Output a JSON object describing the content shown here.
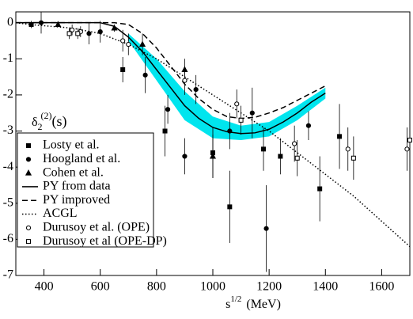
{
  "chart_data": {
    "type": "scatter",
    "xlabel": {
      "base": "s",
      "sup": "1/2",
      "unit": "(MeV)"
    },
    "ylabel": {
      "base": "δ",
      "sub": "2",
      "sup": "(2)",
      "arg": "(s)"
    },
    "xlim": [
      300,
      1700
    ],
    "ylim": [
      -7,
      0.3
    ],
    "xticks": [
      400,
      600,
      800,
      1000,
      1200,
      1400,
      1600
    ],
    "yticks": [
      0,
      -1,
      -2,
      -3,
      -4,
      -5,
      -6,
      -7
    ],
    "band": {
      "color": "#00e5ee",
      "x": [
        700,
        800,
        900,
        1000,
        1100,
        1200,
        1300,
        1400
      ],
      "upper": [
        -0.3,
        -1.0,
        -1.9,
        -2.6,
        -2.85,
        -2.75,
        -2.3,
        -1.8
      ],
      "lower": [
        -0.5,
        -1.6,
        -2.7,
        -3.2,
        -3.25,
        -3.15,
        -2.7,
        -2.1
      ]
    },
    "series": [
      {
        "name": "Losty et al.",
        "kind": "points",
        "marker": "square-filled",
        "x": [
          355,
          680,
          830,
          1000,
          1060,
          1180,
          1240,
          1380,
          1450
        ],
        "values": [
          -0.05,
          -1.3,
          -3.0,
          -3.6,
          -5.1,
          -3.5,
          -3.7,
          -4.6,
          -3.15
        ],
        "errors": [
          0.1,
          0.35,
          0.7,
          0.7,
          1.0,
          0.6,
          0.5,
          0.9,
          0.9
        ]
      },
      {
        "name": "Hoogland et al.",
        "kind": "points",
        "marker": "circle-filled",
        "x": [
          390,
          560,
          600,
          760,
          840,
          900,
          940,
          1060,
          1140,
          1190,
          1340
        ],
        "values": [
          0.0,
          -0.3,
          -0.25,
          -1.45,
          -2.4,
          -3.7,
          -1.85,
          -3.0,
          -2.5,
          -5.7,
          -2.85
        ],
        "errors": [
          0.3,
          0.3,
          0.3,
          0.5,
          0.4,
          0.5,
          0.4,
          0.5,
          0.7,
          1.2,
          0.4
        ]
      },
      {
        "name": "Cohen et al.",
        "kind": "points",
        "marker": "triangle-filled",
        "x": [
          450,
          650,
          750,
          900,
          1000
        ],
        "values": [
          -0.05,
          -0.15,
          -0.6,
          -1.3,
          -3.7
        ],
        "errors": [
          0.05,
          0.1,
          0.3,
          0.3,
          0.6
        ]
      },
      {
        "name": "PY from data",
        "kind": "line",
        "dash": "none",
        "x": [
          300,
          600,
          650,
          700,
          750,
          800,
          850,
          900,
          950,
          1000,
          1050,
          1100,
          1150,
          1200,
          1250,
          1300,
          1350,
          1400
        ],
        "values": [
          0,
          0,
          -0.1,
          -0.4,
          -0.8,
          -1.3,
          -1.8,
          -2.3,
          -2.65,
          -2.9,
          -3.02,
          -3.07,
          -3.05,
          -2.95,
          -2.75,
          -2.5,
          -2.2,
          -1.95
        ]
      },
      {
        "name": "PY improved",
        "kind": "line",
        "dash": "7,4",
        "x": [
          300,
          650,
          700,
          750,
          800,
          850,
          900,
          950,
          1000,
          1050,
          1100,
          1150,
          1200,
          1250,
          1300,
          1350,
          1400
        ],
        "values": [
          0,
          0,
          -0.05,
          -0.3,
          -0.7,
          -1.2,
          -1.7,
          -2.1,
          -2.4,
          -2.6,
          -2.65,
          -2.62,
          -2.5,
          -2.35,
          -2.15,
          -1.95,
          -1.75
        ]
      },
      {
        "name": "ACGL",
        "kind": "line",
        "dash": "1.5,2.5",
        "x": [
          300,
          350,
          500,
          600,
          700,
          800,
          900,
          1000,
          1100,
          1200,
          1300,
          1400,
          1500,
          1600,
          1700
        ],
        "values": [
          0,
          -0.05,
          -0.15,
          -0.3,
          -0.6,
          -1.0,
          -1.5,
          -2.0,
          -2.5,
          -3.0,
          -3.6,
          -4.2,
          -4.8,
          -5.5,
          -6.2
        ]
      },
      {
        "name": "Durusoy et al. (OPE)",
        "kind": "points",
        "marker": "circle-open",
        "x": [
          500,
          530,
          680,
          700,
          900,
          1085,
          1290,
          1480,
          1690
        ],
        "values": [
          -0.2,
          -0.25,
          -0.5,
          -0.6,
          -1.6,
          -2.25,
          -3.35,
          -3.5,
          -3.5
        ],
        "errors": [
          0.15,
          0.15,
          0.3,
          0.3,
          0.4,
          0.4,
          0.5,
          0.6,
          0.6
        ]
      },
      {
        "name": "Durusoy et al (OPE-DP)",
        "kind": "points",
        "marker": "square-open",
        "x": [
          490,
          520,
          1100,
          1300,
          1500,
          1700
        ],
        "values": [
          -0.3,
          -0.3,
          -2.7,
          -3.75,
          -3.75,
          -3.25
        ],
        "errors": [
          0.15,
          0.15,
          0.4,
          0.5,
          0.6,
          0.6
        ]
      }
    ]
  }
}
